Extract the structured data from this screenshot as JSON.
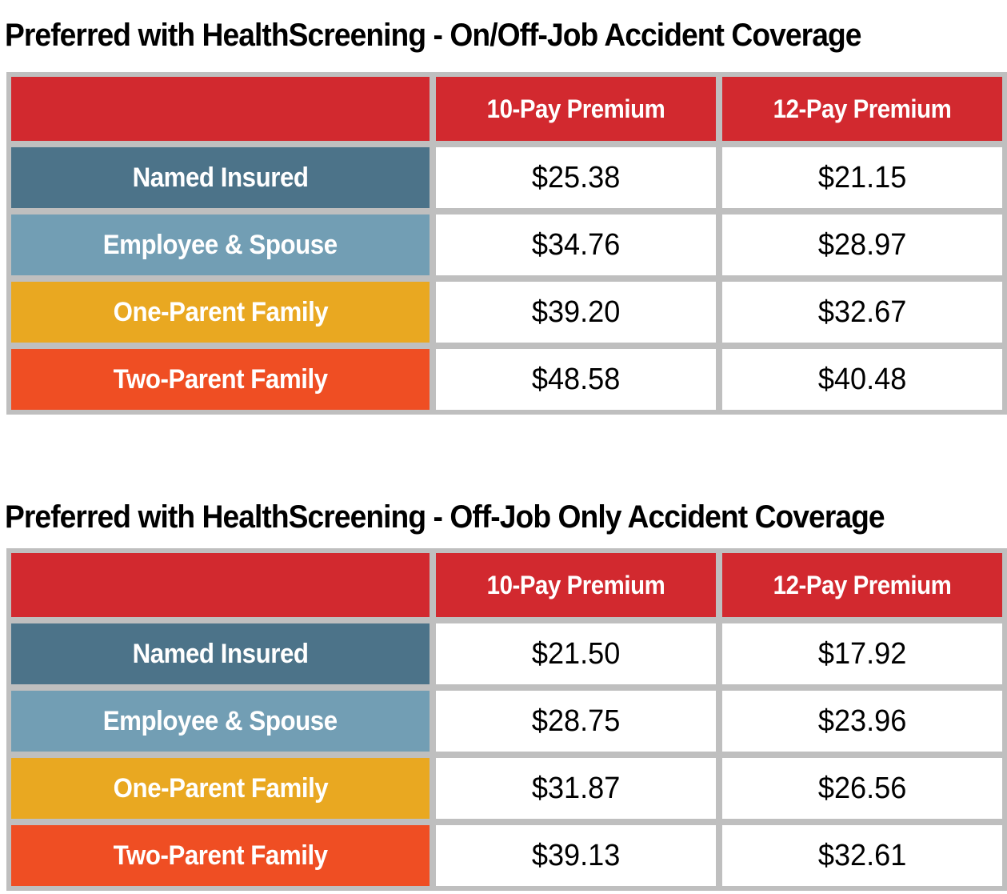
{
  "colors": {
    "header_red": "#D2292F",
    "row_dark_blue": "#4C7389",
    "row_light_blue": "#729EB4",
    "row_yellow": "#E9A821",
    "row_orange": "#EF4E23",
    "table_frame_gray": "#BFBFBF",
    "value_cell_bg": "#FFFFFF",
    "label_text": "#FFFFFF",
    "value_text": "#000000",
    "title_text": "#000000"
  },
  "tables": [
    {
      "title": "Preferred with HealthScreening - On/Off-Job Accident Coverage",
      "column_headers": [
        "10-Pay Premium",
        "12-Pay Premium"
      ],
      "rows": [
        {
          "label": "Named Insured",
          "color": "#4C7389",
          "values": [
            "$25.38",
            "$21.15"
          ]
        },
        {
          "label": "Employee & Spouse",
          "color": "#729EB4",
          "values": [
            "$34.76",
            "$28.97"
          ]
        },
        {
          "label": "One-Parent Family",
          "color": "#E9A821",
          "values": [
            "$39.20",
            "$32.67"
          ]
        },
        {
          "label": "Two-Parent Family",
          "color": "#EF4E23",
          "values": [
            "$48.58",
            "$40.48"
          ]
        }
      ]
    },
    {
      "title": "Preferred with HealthScreening - Off-Job Only Accident Coverage",
      "column_headers": [
        "10-Pay Premium",
        "12-Pay Premium"
      ],
      "rows": [
        {
          "label": "Named Insured",
          "color": "#4C7389",
          "values": [
            "$21.50",
            "$17.92"
          ]
        },
        {
          "label": "Employee & Spouse",
          "color": "#729EB4",
          "values": [
            "$28.75",
            "$23.96"
          ]
        },
        {
          "label": "One-Parent Family",
          "color": "#E9A821",
          "values": [
            "$31.87",
            "$26.56"
          ]
        },
        {
          "label": "Two-Parent Family",
          "color": "#EF4E23",
          "values": [
            "$39.13",
            "$32.61"
          ]
        }
      ]
    }
  ]
}
